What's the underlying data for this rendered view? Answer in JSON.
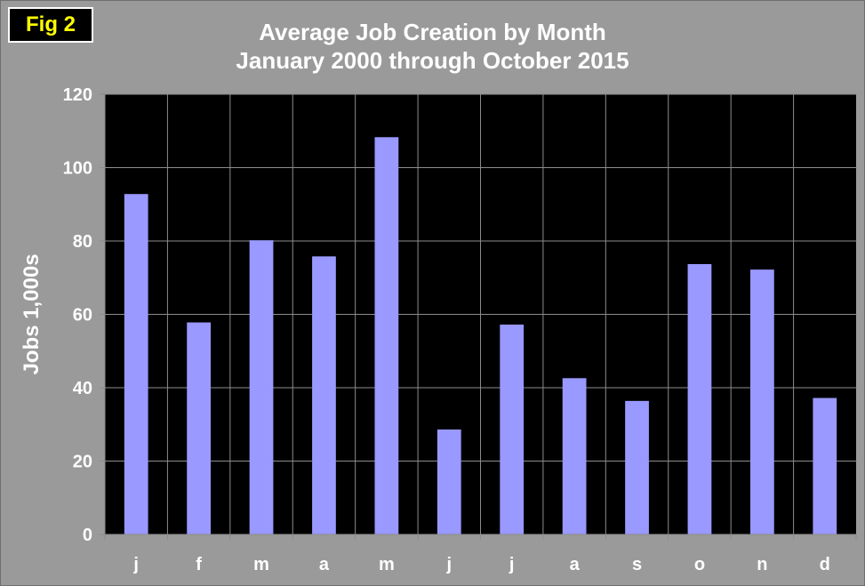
{
  "badge": {
    "label": "Fig 2"
  },
  "chart_data": {
    "type": "bar",
    "title": "Average Job Creation by Month",
    "subtitle": "January 2000 through October 2015",
    "xlabel": "",
    "ylabel": "Jobs 1,000s",
    "categories": [
      "j",
      "f",
      "m",
      "a",
      "m",
      "j",
      "j",
      "a",
      "s",
      "o",
      "n",
      "d"
    ],
    "values": [
      92.8,
      57.8,
      80.2,
      75.8,
      108.3,
      28.6,
      57.2,
      42.6,
      36.4,
      73.7,
      72.2,
      37.2
    ],
    "ylim": [
      0,
      120
    ],
    "yticks": [
      0,
      20,
      40,
      60,
      80,
      100,
      120
    ],
    "grid": true,
    "colors": {
      "bar": "#9999ff",
      "plot_background": "#000000",
      "gridline": "#8c8c8c",
      "figure_background": "#9a9a9a",
      "text": "#ffffff"
    }
  }
}
